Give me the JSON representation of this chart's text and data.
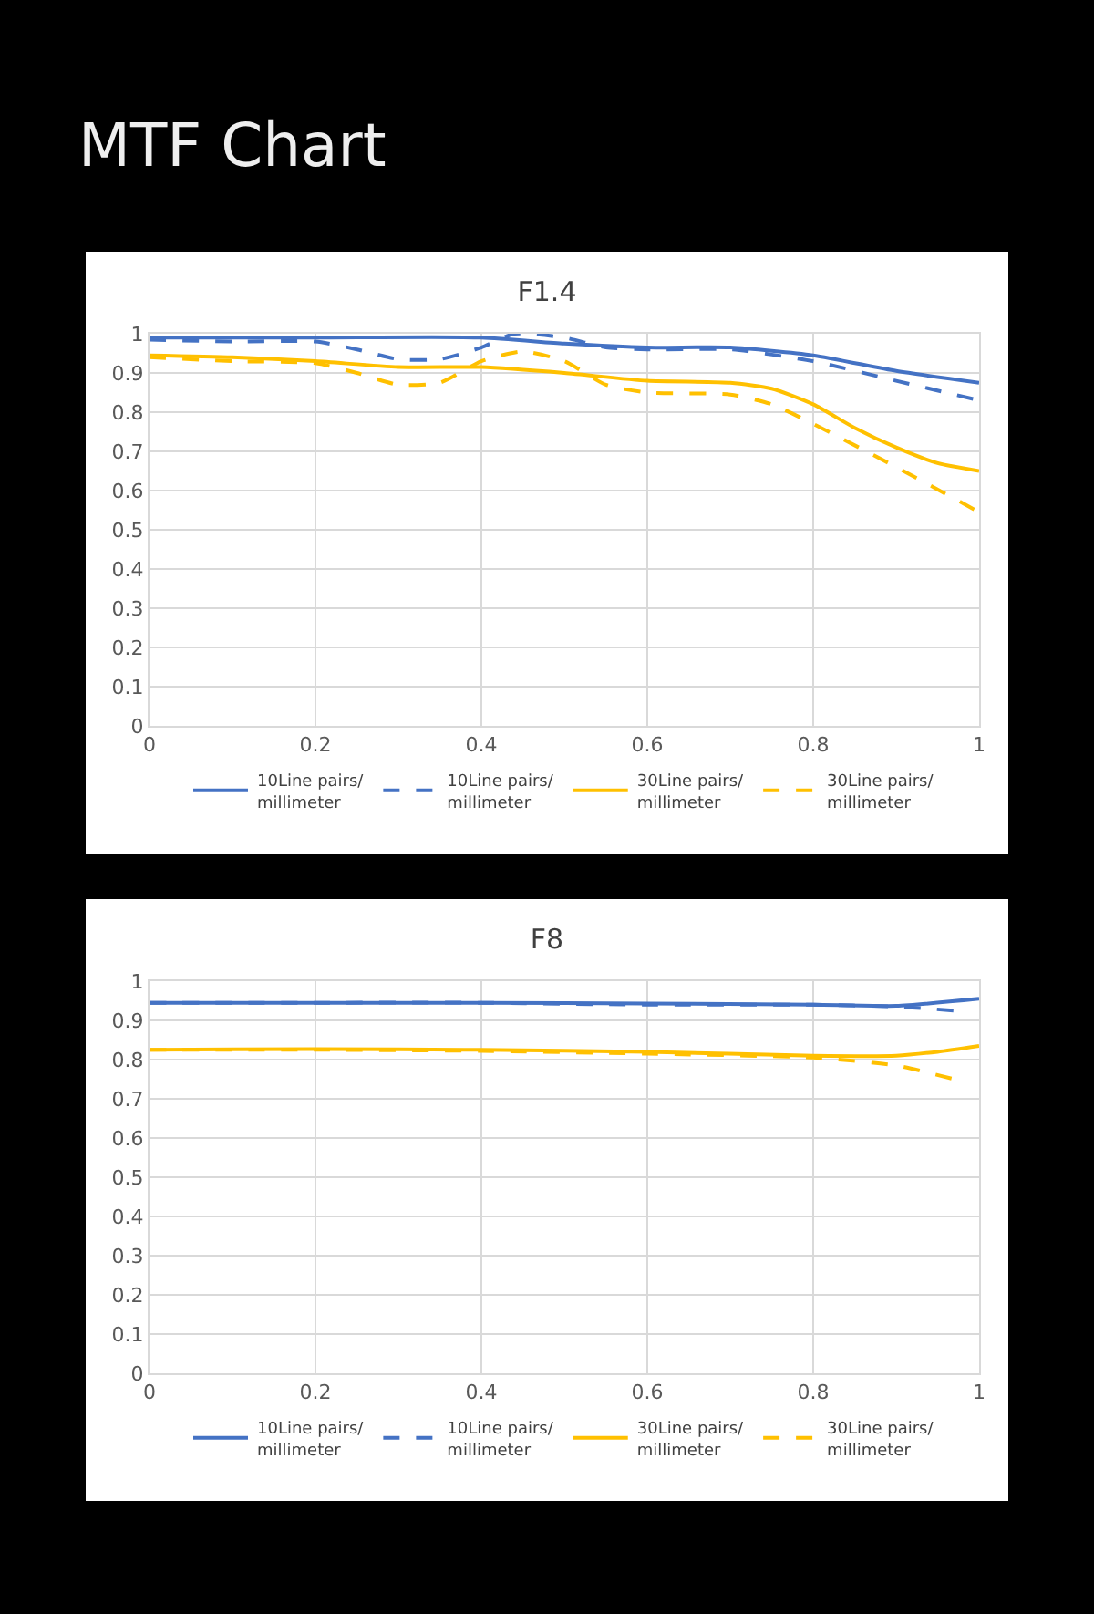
{
  "chart_data": [
    {
      "type": "line",
      "title": "F1.4",
      "annotations": [
        "MTF Chart"
      ],
      "xlim": [
        0,
        1
      ],
      "xticks": [
        0,
        0.2,
        0.4,
        0.6,
        0.8,
        1
      ],
      "ylim": [
        0,
        1
      ],
      "yticks": [
        0,
        0.1,
        0.2,
        0.3,
        0.4,
        0.5,
        0.6,
        0.7,
        0.8,
        0.9,
        1
      ],
      "grid": true,
      "legend": "bottom",
      "series": [
        {
          "name": "10Line pairs/millimeter",
          "color": "#4472c4",
          "line_style": "solid",
          "x": [
            0,
            0.2,
            0.4,
            0.5,
            0.6,
            0.7,
            0.8,
            0.9,
            1
          ],
          "values": [
            0.99,
            0.99,
            0.99,
            0.975,
            0.965,
            0.965,
            0.945,
            0.905,
            0.875
          ]
        },
        {
          "name": "10Line pairs/millimeter",
          "color": "#4472c4",
          "line_style": "dashed",
          "x": [
            0,
            0.1,
            0.2,
            0.25,
            0.3,
            0.35,
            0.4,
            0.44,
            0.5,
            0.55,
            0.6,
            0.7,
            0.8,
            0.9,
            1
          ],
          "values": [
            0.985,
            0.98,
            0.98,
            0.96,
            0.935,
            0.935,
            0.965,
            1.0,
            0.99,
            0.965,
            0.96,
            0.96,
            0.93,
            0.88,
            0.83
          ]
        },
        {
          "name": "30Line pairs/millimeter",
          "color": "#ffc000",
          "line_style": "solid",
          "x": [
            0,
            0.1,
            0.2,
            0.3,
            0.4,
            0.5,
            0.6,
            0.7,
            0.75,
            0.8,
            0.85,
            0.9,
            0.95,
            1
          ],
          "values": [
            0.945,
            0.94,
            0.93,
            0.915,
            0.915,
            0.9,
            0.88,
            0.875,
            0.86,
            0.82,
            0.76,
            0.71,
            0.67,
            0.65
          ]
        },
        {
          "name": "30Line pairs/millimeter",
          "color": "#ffc000",
          "line_style": "dashed",
          "x": [
            0,
            0.1,
            0.2,
            0.25,
            0.3,
            0.35,
            0.4,
            0.45,
            0.5,
            0.55,
            0.6,
            0.7,
            0.75,
            0.8,
            0.9,
            1
          ],
          "values": [
            0.94,
            0.93,
            0.925,
            0.9,
            0.87,
            0.875,
            0.93,
            0.955,
            0.93,
            0.87,
            0.85,
            0.845,
            0.82,
            0.77,
            0.66,
            0.545
          ]
        }
      ]
    },
    {
      "type": "line",
      "title": "F8",
      "xlim": [
        0,
        1
      ],
      "xticks": [
        0,
        0.2,
        0.4,
        0.6,
        0.8,
        1
      ],
      "ylim": [
        0,
        1
      ],
      "yticks": [
        0,
        0.1,
        0.2,
        0.3,
        0.4,
        0.5,
        0.6,
        0.7,
        0.8,
        0.9,
        1
      ],
      "grid": true,
      "legend": "bottom",
      "series": [
        {
          "name": "10Line pairs/millimeter",
          "color": "#4472c4",
          "line_style": "solid",
          "x": [
            0,
            0.2,
            0.4,
            0.6,
            0.8,
            0.9,
            1
          ],
          "values": [
            0.945,
            0.945,
            0.945,
            0.943,
            0.94,
            0.937,
            0.955
          ]
        },
        {
          "name": "10Line pairs/millimeter",
          "color": "#4472c4",
          "line_style": "dashed",
          "x": [
            0,
            0.2,
            0.4,
            0.6,
            0.8,
            0.9,
            0.97
          ],
          "values": [
            0.945,
            0.945,
            0.945,
            0.94,
            0.94,
            0.935,
            0.925
          ]
        },
        {
          "name": "30Line pairs/millimeter",
          "color": "#ffc000",
          "line_style": "solid",
          "x": [
            0,
            0.2,
            0.4,
            0.6,
            0.8,
            0.9,
            0.95,
            1
          ],
          "values": [
            0.825,
            0.827,
            0.825,
            0.82,
            0.81,
            0.81,
            0.82,
            0.835
          ]
        },
        {
          "name": "30Line pairs/millimeter",
          "color": "#ffc000",
          "line_style": "dashed",
          "x": [
            0,
            0.2,
            0.4,
            0.6,
            0.8,
            0.9,
            0.97
          ],
          "values": [
            0.825,
            0.825,
            0.822,
            0.815,
            0.805,
            0.785,
            0.75
          ]
        }
      ]
    }
  ]
}
